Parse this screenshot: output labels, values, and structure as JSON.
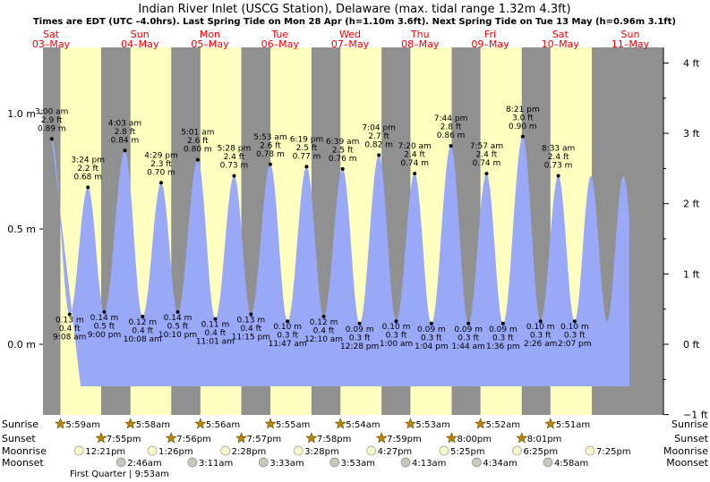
{
  "title": "Indian River Inlet (USCG Station), Delaware (max. tidal range 1.32m 4.3ft)",
  "subtitle": "Times are EDT (UTC –4.0hrs). Last Spring Tide on Mon 28 Apr (h=1.10m 3.6ft). Next Spring Tide on Tue 13 May (h=0.96m 3.1ft)",
  "colors": {
    "day": "#ffffc0",
    "night": "#909090",
    "water": "#9aa8f8",
    "dayLabel": "#e00000",
    "sunMarker": "#b8860b",
    "moonMarker": "#f8f8c8"
  },
  "days": [
    {
      "dow": "Sat",
      "date": "03–May"
    },
    {
      "dow": "Sun",
      "date": "04–May"
    },
    {
      "dow": "Mon",
      "date": "05–May"
    },
    {
      "dow": "Tue",
      "date": "06–May"
    },
    {
      "dow": "Wed",
      "date": "07–May"
    },
    {
      "dow": "Thu",
      "date": "08–May"
    },
    {
      "dow": "Fri",
      "date": "09–May"
    },
    {
      "dow": "Sat",
      "date": "10–May"
    },
    {
      "dow": "Sun",
      "date": "11–May"
    }
  ],
  "row_labels": {
    "sunrise": "Sunrise",
    "sunset": "Sunset",
    "moonrise": "Moonrise",
    "moonset": "Moonset"
  },
  "moon_phase": "First Quarter | 9:53am",
  "chart_data": {
    "type": "area",
    "title": "Indian River Inlet (USCG Station), Delaware (max. tidal range 1.32m 4.3ft)",
    "ylabel_left_unit": "m",
    "ylabel_right_unit": "ft",
    "y_ticks_m": [
      "1.0 m",
      "0.5 m",
      "0.0 m"
    ],
    "y_ticks_m_values": [
      1.0,
      0.5,
      0.0
    ],
    "y_ticks_ft": [
      "4 ft",
      "3 ft",
      "2 ft",
      "1 ft",
      "0 ft",
      "−1 ft"
    ],
    "y_ticks_ft_values": [
      4,
      3,
      2,
      1,
      0,
      -1
    ],
    "ylim_m": [
      -0.3048,
      1.2192
    ],
    "x_days": [
      "2025-05-03",
      "2025-05-11"
    ],
    "tides": [
      {
        "type": "high",
        "day": "2025-05-03",
        "time": "3:00 am",
        "ft": "2.9 ft",
        "m": 0.89,
        "m_text": "0.89 m"
      },
      {
        "type": "low",
        "day": "2025-05-03",
        "time": "9:08 am",
        "ft": "0.4 ft",
        "m": 0.13,
        "m_text": "0.13 m"
      },
      {
        "type": "high",
        "day": "2025-05-03",
        "time": "3:24 pm",
        "ft": "2.2 ft",
        "m": 0.68,
        "m_text": "0.68 m"
      },
      {
        "type": "low",
        "day": "2025-05-03",
        "time": "9:00 pm",
        "ft": "0.5 ft",
        "m": 0.14,
        "m_text": "0.14 m"
      },
      {
        "type": "high",
        "day": "2025-05-04",
        "time": "4:03 am",
        "ft": "2.8 ft",
        "m": 0.84,
        "m_text": "0.84 m"
      },
      {
        "type": "low",
        "day": "2025-05-04",
        "time": "10:08 am",
        "ft": "0.4 ft",
        "m": 0.12,
        "m_text": "0.12 m"
      },
      {
        "type": "high",
        "day": "2025-05-04",
        "time": "4:29 pm",
        "ft": "2.3 ft",
        "m": 0.7,
        "m_text": "0.70 m"
      },
      {
        "type": "low",
        "day": "2025-05-04",
        "time": "10:10 pm",
        "ft": "0.5 ft",
        "m": 0.14,
        "m_text": "0.14 m"
      },
      {
        "type": "high",
        "day": "2025-05-05",
        "time": "5:01 am",
        "ft": "2.6 ft",
        "m": 0.8,
        "m_text": "0.80 m"
      },
      {
        "type": "low",
        "day": "2025-05-05",
        "time": "11:01 am",
        "ft": "0.4 ft",
        "m": 0.11,
        "m_text": "0.11 m"
      },
      {
        "type": "high",
        "day": "2025-05-05",
        "time": "5:28 pm",
        "ft": "2.4 ft",
        "m": 0.73,
        "m_text": "0.73 m"
      },
      {
        "type": "low",
        "day": "2025-05-05",
        "time": "11:15 pm",
        "ft": "0.4 ft",
        "m": 0.13,
        "m_text": "0.13 m"
      },
      {
        "type": "high",
        "day": "2025-05-06",
        "time": "5:53 am",
        "ft": "2.6 ft",
        "m": 0.78,
        "m_text": "0.78 m"
      },
      {
        "type": "low",
        "day": "2025-05-06",
        "time": "11:47 am",
        "ft": "0.3 ft",
        "m": 0.1,
        "m_text": "0.10 m"
      },
      {
        "type": "high",
        "day": "2025-05-06",
        "time": "6:19 pm",
        "ft": "2.5 ft",
        "m": 0.77,
        "m_text": "0.77 m"
      },
      {
        "type": "low",
        "day": "2025-05-07",
        "time": "12:10 am",
        "ft": "0.4 ft",
        "m": 0.12,
        "m_text": "0.12 m"
      },
      {
        "type": "high",
        "day": "2025-05-07",
        "time": "6:39 am",
        "ft": "2.5 ft",
        "m": 0.76,
        "m_text": "0.76 m"
      },
      {
        "type": "low",
        "day": "2025-05-07",
        "time": "12:28 pm",
        "ft": "0.3 ft",
        "m": 0.09,
        "m_text": "0.09 m"
      },
      {
        "type": "high",
        "day": "2025-05-07",
        "time": "7:04 pm",
        "ft": "2.7 ft",
        "m": 0.82,
        "m_text": "0.82 m"
      },
      {
        "type": "low",
        "day": "2025-05-08",
        "time": "1:00 am",
        "ft": "0.3 ft",
        "m": 0.1,
        "m_text": "0.10 m"
      },
      {
        "type": "high",
        "day": "2025-05-08",
        "time": "7:20 am",
        "ft": "2.4 ft",
        "m": 0.74,
        "m_text": "0.74 m"
      },
      {
        "type": "low",
        "day": "2025-05-08",
        "time": "1:04 pm",
        "ft": "0.3 ft",
        "m": 0.09,
        "m_text": "0.09 m"
      },
      {
        "type": "high",
        "day": "2025-05-08",
        "time": "7:44 pm",
        "ft": "2.8 ft",
        "m": 0.86,
        "m_text": "0.86 m"
      },
      {
        "type": "low",
        "day": "2025-05-09",
        "time": "1:44 am",
        "ft": "0.3 ft",
        "m": 0.09,
        "m_text": "0.09 m"
      },
      {
        "type": "high",
        "day": "2025-05-09",
        "time": "7:57 am",
        "ft": "2.4 ft",
        "m": 0.74,
        "m_text": "0.74 m"
      },
      {
        "type": "low",
        "day": "2025-05-09",
        "time": "1:36 pm",
        "ft": "0.3 ft",
        "m": 0.09,
        "m_text": "0.09 m"
      },
      {
        "type": "high",
        "day": "2025-05-09",
        "time": "8:21 pm",
        "ft": "3.0 ft",
        "m": 0.9,
        "m_text": "0.90 m"
      },
      {
        "type": "low",
        "day": "2025-05-10",
        "time": "2:26 am",
        "ft": "0.3 ft",
        "m": 0.1,
        "m_text": "0.10 m"
      },
      {
        "type": "high",
        "day": "2025-05-10",
        "time": "8:33 am",
        "ft": "2.4 ft",
        "m": 0.73,
        "m_text": "0.73 m"
      },
      {
        "type": "low",
        "day": "2025-05-10",
        "time": "2:07 pm",
        "ft": "0.3 ft",
        "m": 0.1,
        "m_text": "0.10 m"
      }
    ],
    "daylight": [
      {
        "day": "2025-05-03",
        "sunrise": "5:59am",
        "sunset": "7:55pm"
      },
      {
        "day": "2025-05-04",
        "sunrise": "5:58am",
        "sunset": "7:56pm"
      },
      {
        "day": "2025-05-05",
        "sunrise": "5:56am",
        "sunset": "7:57pm"
      },
      {
        "day": "2025-05-06",
        "sunrise": "5:55am",
        "sunset": "7:58pm"
      },
      {
        "day": "2025-05-07",
        "sunrise": "5:54am",
        "sunset": "7:59pm"
      },
      {
        "day": "2025-05-08",
        "sunrise": "5:53am",
        "sunset": "8:00pm"
      },
      {
        "day": "2025-05-09",
        "sunrise": "5:52am",
        "sunset": "8:01pm"
      },
      {
        "day": "2025-05-10",
        "sunrise": "5:51am",
        "sunset": ""
      }
    ],
    "moon": [
      {
        "day": "2025-05-03",
        "moonrise": "12:21pm",
        "moonset": "2:46am"
      },
      {
        "day": "2025-05-04",
        "moonrise": "1:26pm",
        "moonset": "3:11am"
      },
      {
        "day": "2025-05-05",
        "moonrise": "2:28pm",
        "moonset": "3:33am"
      },
      {
        "day": "2025-05-06",
        "moonrise": "3:28pm",
        "moonset": "3:53am"
      },
      {
        "day": "2025-05-07",
        "moonrise": "4:27pm",
        "moonset": "4:13am"
      },
      {
        "day": "2025-05-08",
        "moonrise": "5:25pm",
        "moonset": "4:34am"
      },
      {
        "day": "2025-05-09",
        "moonrise": "6:25pm",
        "moonset": "4:58am"
      },
      {
        "day": "2025-05-10",
        "moonrise": "7:25pm",
        "moonset": ""
      }
    ]
  }
}
